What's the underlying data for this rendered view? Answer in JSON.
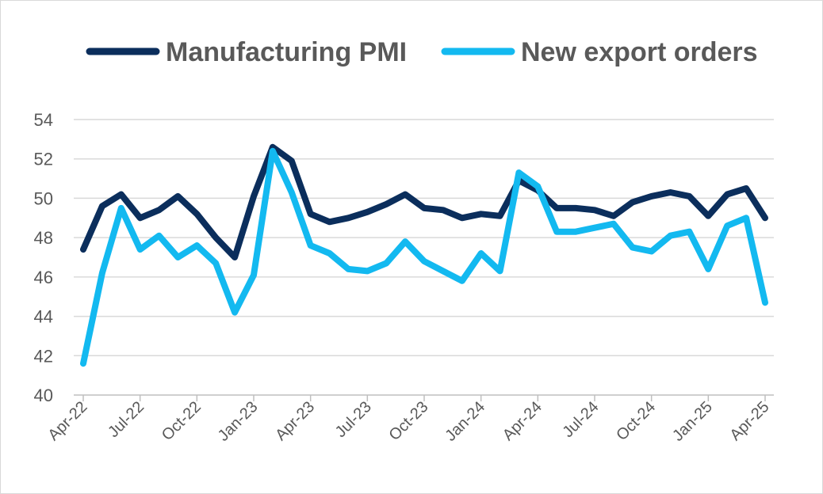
{
  "chart_data": {
    "type": "line",
    "title": "",
    "xlabel": "",
    "ylabel": "",
    "ylim": [
      40,
      54
    ],
    "y_ticks": [
      40,
      42,
      44,
      46,
      48,
      50,
      52,
      54
    ],
    "grid": true,
    "legend_position": "top",
    "x": [
      "Apr-22",
      "May-22",
      "Jun-22",
      "Jul-22",
      "Aug-22",
      "Sep-22",
      "Oct-22",
      "Nov-22",
      "Dec-22",
      "Jan-23",
      "Feb-23",
      "Mar-23",
      "Apr-23",
      "May-23",
      "Jun-23",
      "Jul-23",
      "Aug-23",
      "Sep-23",
      "Oct-23",
      "Nov-23",
      "Dec-23",
      "Jan-24",
      "Feb-24",
      "Mar-24",
      "Apr-24",
      "May-24",
      "Jun-24",
      "Jul-24",
      "Aug-24",
      "Sep-24",
      "Oct-24",
      "Nov-24",
      "Dec-24",
      "Jan-25",
      "Feb-25",
      "Mar-25",
      "Apr-25"
    ],
    "x_tick_labels": [
      "Apr-22",
      "Jul-22",
      "Oct-22",
      "Jan-23",
      "Apr-23",
      "Jul-23",
      "Oct-23",
      "Jan-24",
      "Apr-24",
      "Jul-24",
      "Oct-24",
      "Jan-25",
      "Apr-25"
    ],
    "series": [
      {
        "name": "Manufacturing PMI",
        "color": "#0b2e5c",
        "values": [
          47.4,
          49.6,
          50.2,
          49.0,
          49.4,
          50.1,
          49.2,
          48.0,
          47.0,
          50.1,
          52.6,
          51.9,
          49.2,
          48.8,
          49.0,
          49.3,
          49.7,
          50.2,
          49.5,
          49.4,
          49.0,
          49.2,
          49.1,
          50.9,
          50.4,
          49.5,
          49.5,
          49.4,
          49.1,
          49.8,
          50.1,
          50.3,
          50.1,
          49.1,
          50.2,
          50.5,
          49.0
        ]
      },
      {
        "name": "New export orders",
        "color": "#13b9f0",
        "values": [
          41.6,
          46.2,
          49.5,
          47.4,
          48.1,
          47.0,
          47.6,
          46.7,
          44.2,
          46.1,
          52.4,
          50.3,
          47.6,
          47.2,
          46.4,
          46.3,
          46.7,
          47.8,
          46.8,
          46.3,
          45.8,
          47.2,
          46.3,
          51.3,
          50.6,
          48.3,
          48.3,
          48.5,
          48.7,
          47.5,
          47.3,
          48.1,
          48.3,
          46.4,
          48.6,
          49.0,
          44.7
        ]
      }
    ]
  }
}
